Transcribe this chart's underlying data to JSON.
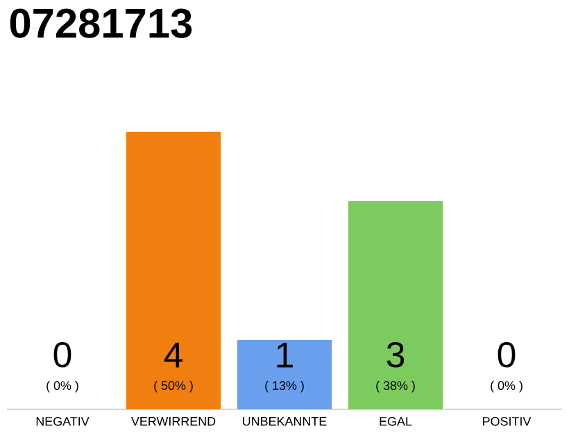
{
  "chart_data": {
    "type": "bar",
    "title": "07281713",
    "categories": [
      "NEGATIV",
      "VERWIRREND",
      "UNBEKANNTE",
      "EGAL",
      "POSITIV"
    ],
    "values": [
      0,
      4,
      1,
      3,
      0
    ],
    "colors": [
      "#e0e0e0",
      "#f07f0f",
      "#6a9fee",
      "#7dca5e",
      "#e0e0e0"
    ],
    "value_labels": [
      "0",
      "4",
      "1",
      "3",
      "0"
    ],
    "annotations": [
      "( 0% )",
      "( 50% )",
      "( 13% )",
      "( 38% )",
      "( 0% )"
    ],
    "tick_labels": "x"
  }
}
